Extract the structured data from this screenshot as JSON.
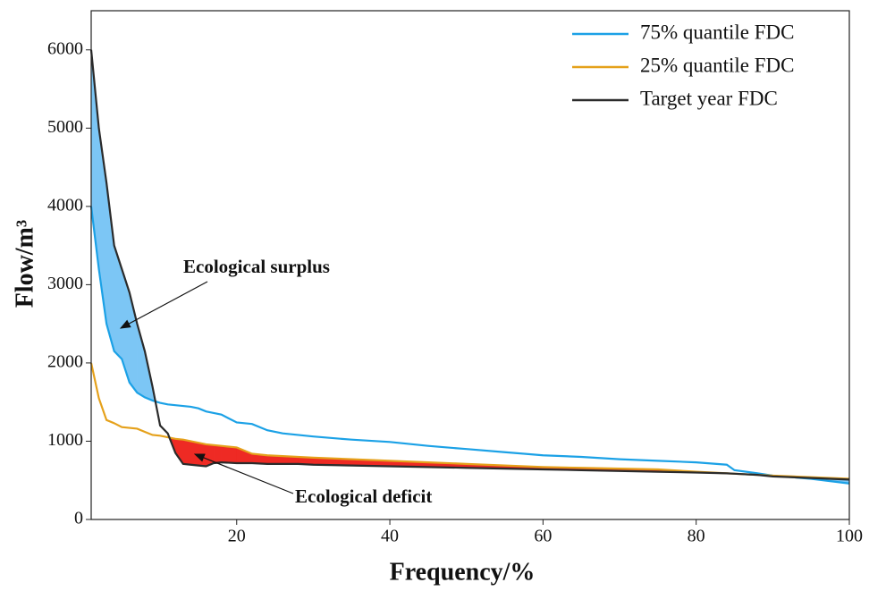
{
  "chart_data": {
    "type": "line",
    "x_label": "Frequency/%",
    "y_label": "Flow/m³",
    "x": [
      1,
      2,
      3,
      4,
      5,
      6,
      7,
      8,
      9,
      10,
      11,
      12,
      13,
      14,
      15,
      16,
      17,
      18,
      20,
      22,
      24,
      26,
      28,
      30,
      35,
      40,
      45,
      50,
      55,
      60,
      65,
      70,
      75,
      80,
      84,
      85,
      88,
      90,
      95,
      100
    ],
    "series": [
      {
        "name": "75% quantile FDC",
        "color": "#1ba1e6",
        "values": [
          4000,
          3200,
          2500,
          2150,
          2050,
          1750,
          1620,
          1560,
          1520,
          1490,
          1470,
          1460,
          1450,
          1440,
          1420,
          1380,
          1360,
          1340,
          1240,
          1220,
          1140,
          1100,
          1080,
          1060,
          1020,
          990,
          940,
          900,
          860,
          820,
          800,
          770,
          750,
          730,
          700,
          630,
          590,
          560,
          520,
          460
        ]
      },
      {
        "name": "25% quantile FDC",
        "color": "#e5a11b",
        "values": [
          2000,
          1550,
          1270,
          1230,
          1180,
          1170,
          1160,
          1120,
          1080,
          1070,
          1050,
          1030,
          1020,
          1000,
          980,
          960,
          950,
          940,
          920,
          840,
          820,
          810,
          800,
          790,
          770,
          750,
          730,
          710,
          690,
          670,
          660,
          650,
          640,
          610,
          590,
          585,
          570,
          560,
          540,
          520
        ]
      },
      {
        "name": "Target year FDC",
        "color": "#2b2b2b",
        "values": [
          6000,
          5000,
          4300,
          3500,
          3200,
          2900,
          2500,
          2150,
          1700,
          1200,
          1100,
          850,
          710,
          700,
          690,
          680,
          720,
          730,
          720,
          720,
          710,
          710,
          710,
          700,
          690,
          680,
          670,
          660,
          650,
          640,
          630,
          620,
          610,
          600,
          590,
          585,
          570,
          550,
          530,
          510
        ]
      }
    ],
    "surplus_color": "#7cc6f5",
    "deficit_color": "#ee2a24",
    "annotations": [
      {
        "text": "Ecological surplus"
      },
      {
        "text": "Ecological deficit"
      }
    ],
    "xlim": [
      1,
      100
    ],
    "xticks": [
      20,
      40,
      60,
      80,
      100
    ],
    "ylim": [
      0,
      6500
    ],
    "yticks": [
      0,
      1000,
      2000,
      3000,
      4000,
      5000,
      6000
    ],
    "legend": "upper right"
  }
}
